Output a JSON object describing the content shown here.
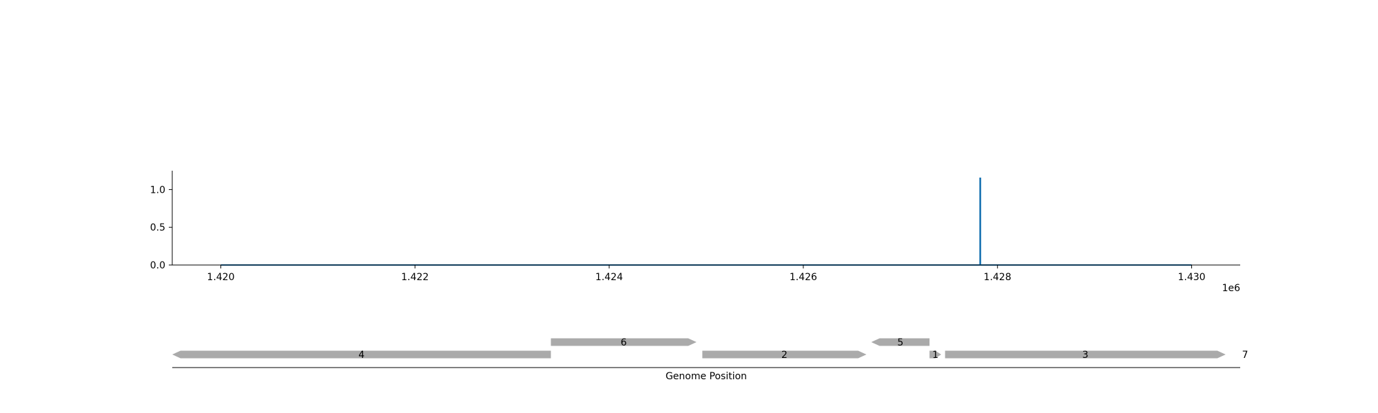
{
  "chart_data": [
    {
      "type": "line",
      "x_range": [
        1419500,
        1430500
      ],
      "ylim": [
        0,
        1.25
      ],
      "xticks": [
        1420000,
        1422000,
        1424000,
        1426000,
        1428000,
        1430000
      ],
      "xtick_labels": [
        "1.420",
        "1.422",
        "1.424",
        "1.426",
        "1.428",
        "1.430"
      ],
      "x_offset_label": "1e6",
      "yticks": [
        0.0,
        0.5,
        1.0
      ],
      "ytick_labels": [
        "0.0",
        "0.5",
        "1.0"
      ],
      "grid": false,
      "series": [
        {
          "color": "#1f77b4",
          "x": [
            1420000,
            1427820,
            1427820,
            1427825,
            1427825,
            1430000
          ],
          "y": [
            0,
            0,
            1.15,
            1.15,
            0,
            0
          ]
        }
      ]
    },
    {
      "type": "gene-track",
      "xlabel": "Genome Position",
      "x_range": [
        1419500,
        1430500
      ],
      "color": "#aaaaaa",
      "genes": [
        {
          "label": "4",
          "start": 1419500,
          "end": 1423400,
          "strand": "-",
          "row": 0
        },
        {
          "label": "6",
          "start": 1423400,
          "end": 1424900,
          "strand": "+",
          "row": 1
        },
        {
          "label": "2",
          "start": 1424960,
          "end": 1426650,
          "strand": "+",
          "row": 0
        },
        {
          "label": "5",
          "start": 1426700,
          "end": 1427300,
          "strand": "-",
          "row": 1
        },
        {
          "label": "1",
          "start": 1427300,
          "end": 1427420,
          "strand": "+",
          "row": 0
        },
        {
          "label": "3",
          "start": 1427460,
          "end": 1430350,
          "strand": "+",
          "row": 0
        },
        {
          "label": "7",
          "start": 1430540,
          "end": 1430560,
          "strand": "+",
          "row": 0
        }
      ]
    }
  ]
}
